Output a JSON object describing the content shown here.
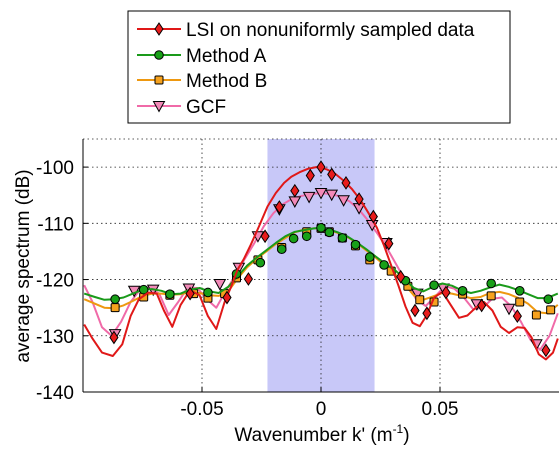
{
  "chart_data": {
    "type": "line",
    "xlabel": "Wavenumber k'",
    "xlabel_unit_base": "(m",
    "xlabel_unit_exp": "-1",
    "xlabel_unit_close": ")",
    "ylabel": "average spectrum (dB)",
    "xlim": [
      -0.1,
      0.1
    ],
    "ylim": [
      -140,
      -95
    ],
    "xticks": [
      -0.05,
      0,
      0.05
    ],
    "xtick_labels": [
      "-0.05",
      "0",
      "0.05"
    ],
    "yticks": [
      -140,
      -130,
      -120,
      -110,
      -100
    ],
    "ytick_labels": [
      "-140",
      "-130",
      "-120",
      "-110",
      "-100"
    ],
    "grid": "dotted",
    "legend_position": "top-center, outside plot",
    "shaded_band": {
      "x_range": [
        -0.0225,
        0.0225
      ],
      "color": "#c8c8f8"
    },
    "series": [
      {
        "name": "LSI on nonuniformly sampled data",
        "color": "#e01818",
        "marker": "diamond",
        "marker_fill": "#e81c1c",
        "x": [
          -0.0995,
          -0.096,
          -0.092,
          -0.0875,
          -0.0835,
          -0.08,
          -0.0765,
          -0.0725,
          -0.069,
          -0.066,
          -0.0625,
          -0.059,
          -0.055,
          -0.051,
          -0.0475,
          -0.044,
          -0.0405,
          -0.038,
          -0.035,
          -0.0325,
          -0.0295,
          -0.026,
          -0.0225,
          -0.019,
          -0.0155,
          -0.0125,
          -0.009,
          -0.0055,
          -0.002,
          0,
          0.0025,
          0.006,
          0.0095,
          0.013,
          0.0165,
          0.02,
          0.0235,
          0.0265,
          0.0295,
          0.0325,
          0.0355,
          0.0385,
          0.0415,
          0.0445,
          0.0475,
          0.051,
          0.0545,
          0.058,
          0.0615,
          0.065,
          0.0685,
          0.072,
          0.0755,
          0.079,
          0.0825,
          0.0855,
          0.0885,
          0.0915,
          0.0945,
          0.0975,
          0.0995
        ],
        "y": [
          -128.0,
          -130.5,
          -133.0,
          -133.6,
          -131.5,
          -126.5,
          -123.5,
          -122.3,
          -122.5,
          -125.5,
          -128.4,
          -124.5,
          -121.9,
          -122.8,
          -126.5,
          -128.8,
          -124.0,
          -121.5,
          -118.2,
          -116.4,
          -113.8,
          -110.5,
          -107.0,
          -104.6,
          -102.8,
          -101.7,
          -100.9,
          -100.3,
          -100.0,
          -100.1,
          -100.4,
          -101.2,
          -102.4,
          -103.9,
          -105.8,
          -108.2,
          -110.8,
          -114.0,
          -117.5,
          -121.0,
          -124.8,
          -127.7,
          -128.3,
          -126.3,
          -123.2,
          -122.2,
          -124.5,
          -126.8,
          -126.4,
          -125.0,
          -124.0,
          -125.5,
          -128.4,
          -129.5,
          -128.5,
          -128.6,
          -130.3,
          -133.3,
          -134.2,
          -133.0,
          -130.5
        ],
        "marker_x": [
          -0.087,
          -0.055,
          -0.0395,
          -0.0305,
          -0.0235,
          -0.0175,
          -0.011,
          -0.0045,
          0,
          0.0045,
          0.0105,
          0.016,
          0.022,
          0.0285,
          0.0335,
          0.0395,
          0.0445,
          0.0525,
          0.0675,
          0.0825,
          0.0945
        ],
        "marker_y": [
          -130.3,
          -122.5,
          -123.2,
          -119.9,
          -112.3,
          -107.1,
          -104.2,
          -101.5,
          -100.0,
          -101.3,
          -102.8,
          -105.7,
          -108.8,
          -113.6,
          -119.5,
          -125.5,
          -126.0,
          -122.3,
          -124.6,
          -126.5,
          -132.6
        ]
      },
      {
        "name": "Method A",
        "color": "#1a9a1a",
        "marker": "circle",
        "marker_fill": "#18a018",
        "x": [
          -0.0995,
          -0.095,
          -0.091,
          -0.087,
          -0.083,
          -0.079,
          -0.075,
          -0.071,
          -0.067,
          -0.063,
          -0.059,
          -0.055,
          -0.051,
          -0.047,
          -0.043,
          -0.039,
          -0.035,
          -0.031,
          -0.027,
          -0.023,
          -0.019,
          -0.015,
          -0.011,
          -0.007,
          -0.003,
          0,
          0.003,
          0.007,
          0.011,
          0.015,
          0.019,
          0.023,
          0.027,
          0.031,
          0.035,
          0.039,
          0.043,
          0.047,
          0.051,
          0.055,
          0.059,
          0.063,
          0.067,
          0.071,
          0.075,
          0.079,
          0.083,
          0.087,
          0.091,
          0.095,
          0.0995
        ],
        "y": [
          -122.5,
          -123.1,
          -123.6,
          -123.5,
          -123.2,
          -122.5,
          -121.8,
          -121.7,
          -122.0,
          -122.6,
          -122.5,
          -121.8,
          -121.5,
          -122.1,
          -122.4,
          -121.3,
          -119.4,
          -117.5,
          -116.1,
          -114.8,
          -113.5,
          -112.3,
          -111.5,
          -111.2,
          -110.9,
          -110.8,
          -111.0,
          -111.6,
          -112.3,
          -113.4,
          -114.6,
          -115.9,
          -117.2,
          -118.3,
          -119.8,
          -121.5,
          -122.1,
          -121.3,
          -120.7,
          -121.1,
          -121.9,
          -122.4,
          -122.0,
          -121.4,
          -120.9,
          -121.3,
          -121.9,
          -122.6,
          -123.3,
          -123.3,
          -122.5
        ],
        "marker_x": [
          -0.0865,
          -0.0745,
          -0.0635,
          -0.0475,
          -0.0355,
          -0.0255,
          -0.0165,
          -0.0115,
          -0.006,
          0,
          0.0035,
          0.009,
          0.0145,
          0.0205,
          0.0265,
          0.0355,
          0.0475,
          0.0595,
          0.0715,
          0.0835,
          0.0955
        ],
        "marker_y": [
          -123.5,
          -121.8,
          -122.6,
          -122.3,
          -119.0,
          -117.0,
          -114.6,
          -112.7,
          -112.3,
          -110.8,
          -111.6,
          -112.6,
          -113.8,
          -116.0,
          -117.4,
          -120.2,
          -121.0,
          -122.0,
          -120.7,
          -122.0,
          -123.5
        ]
      },
      {
        "name": "Method B",
        "color": "#ee9810",
        "marker": "square",
        "marker_fill": "#f6a21e",
        "x": [
          -0.0995,
          -0.095,
          -0.091,
          -0.087,
          -0.083,
          -0.079,
          -0.075,
          -0.071,
          -0.067,
          -0.063,
          -0.059,
          -0.055,
          -0.051,
          -0.047,
          -0.043,
          -0.039,
          -0.035,
          -0.031,
          -0.027,
          -0.023,
          -0.019,
          -0.015,
          -0.011,
          -0.007,
          -0.003,
          0,
          0.003,
          0.007,
          0.011,
          0.015,
          0.019,
          0.023,
          0.027,
          0.031,
          0.035,
          0.039,
          0.043,
          0.047,
          0.051,
          0.055,
          0.059,
          0.063,
          0.067,
          0.071,
          0.075,
          0.079,
          0.083,
          0.087,
          0.091,
          0.095,
          0.0995
        ],
        "y": [
          -123.5,
          -124.3,
          -125.0,
          -125.1,
          -124.6,
          -123.8,
          -122.9,
          -122.5,
          -122.5,
          -122.7,
          -122.6,
          -122.3,
          -122.4,
          -122.8,
          -122.9,
          -122.1,
          -119.8,
          -117.8,
          -116.3,
          -115.0,
          -113.7,
          -112.6,
          -111.6,
          -111.1,
          -110.9,
          -110.9,
          -111.1,
          -111.7,
          -112.4,
          -113.5,
          -114.8,
          -116.1,
          -117.6,
          -119.0,
          -120.8,
          -122.8,
          -123.6,
          -123.0,
          -122.4,
          -122.5,
          -122.9,
          -123.3,
          -123.1,
          -122.4,
          -122.2,
          -122.6,
          -123.3,
          -124.3,
          -125.8,
          -126.0,
          -124.5
        ],
        "marker_x": [
          -0.0865,
          -0.0745,
          -0.0635,
          -0.0535,
          -0.0475,
          -0.0405,
          -0.0355,
          -0.0265,
          -0.0165,
          -0.006,
          0,
          0.0035,
          0.009,
          0.0145,
          0.0205,
          0.0295,
          0.0365,
          0.0415,
          0.0475,
          0.0595,
          0.0715,
          0.0835,
          0.0905,
          0.0965
        ],
        "marker_y": [
          -125.0,
          -123.1,
          -122.8,
          -122.5,
          -123.3,
          -122.5,
          -119.7,
          -116.5,
          -114.3,
          -111.5,
          -110.9,
          -111.5,
          -112.6,
          -114.0,
          -116.5,
          -118.5,
          -121.2,
          -123.6,
          -124.0,
          -122.6,
          -122.9,
          -124.0,
          -126.3,
          -125.4
        ]
      },
      {
        "name": "GCF",
        "color": "#f06aa8",
        "marker": "triangle-down",
        "marker_fill": "#f28ab8",
        "x": [
          -0.0995,
          -0.096,
          -0.092,
          -0.088,
          -0.084,
          -0.08,
          -0.076,
          -0.072,
          -0.068,
          -0.064,
          -0.06,
          -0.056,
          -0.052,
          -0.048,
          -0.044,
          -0.04,
          -0.036,
          -0.032,
          -0.028,
          -0.024,
          -0.02,
          -0.016,
          -0.012,
          -0.008,
          -0.004,
          0,
          0.004,
          0.008,
          0.012,
          0.016,
          0.02,
          0.024,
          0.028,
          0.032,
          0.036,
          0.04,
          0.044,
          0.048,
          0.052,
          0.056,
          0.06,
          0.064,
          0.068,
          0.072,
          0.076,
          0.08,
          0.084,
          0.088,
          0.092,
          0.096,
          0.0995
        ],
        "y": [
          -121.0,
          -124.0,
          -128.5,
          -130.0,
          -127.5,
          -124.0,
          -121.8,
          -121.5,
          -122.5,
          -126.3,
          -124.0,
          -121.4,
          -121.5,
          -123.5,
          -125.0,
          -122.0,
          -119.3,
          -116.3,
          -113.5,
          -110.5,
          -108.2,
          -106.6,
          -105.6,
          -105.1,
          -104.8,
          -104.6,
          -104.8,
          -105.2,
          -106.1,
          -107.6,
          -109.6,
          -112.0,
          -114.6,
          -117.6,
          -120.6,
          -123.5,
          -124.7,
          -123.0,
          -121.2,
          -121.6,
          -123.2,
          -125.3,
          -125.0,
          -123.4,
          -123.2,
          -124.8,
          -127.5,
          -130.7,
          -132.5,
          -130.0,
          -126.0
        ],
        "marker_x": [
          -0.0865,
          -0.0785,
          -0.0705,
          -0.0555,
          -0.0425,
          -0.0345,
          -0.0265,
          -0.0175,
          -0.011,
          -0.005,
          0,
          0.0045,
          0.0095,
          0.016,
          0.0215,
          0.0275,
          0.0405,
          0.0515,
          0.0655,
          0.079,
          0.0905
        ],
        "marker_y": [
          -129.7,
          -122.0,
          -121.8,
          -121.6,
          -120.8,
          -117.9,
          -112.3,
          -107.5,
          -106.1,
          -105.3,
          -104.6,
          -104.9,
          -105.9,
          -107.3,
          -110.3,
          -113.5,
          -122.5,
          -121.6,
          -124.4,
          -125.2,
          -131.5
        ]
      }
    ]
  }
}
